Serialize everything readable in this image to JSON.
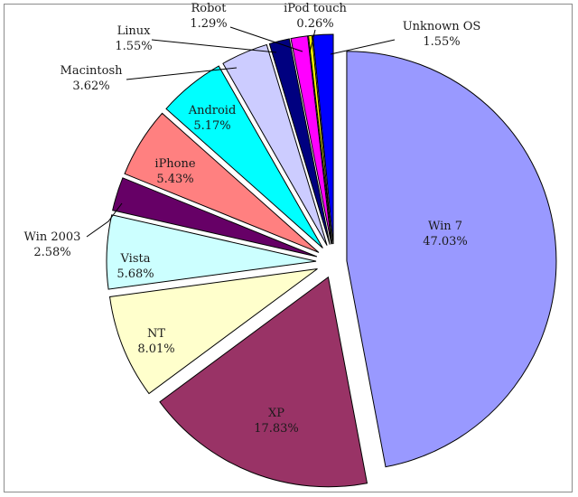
{
  "chart_data": {
    "type": "pie",
    "title": "",
    "label_format": "{name}\n{pct}%",
    "slices": [
      {
        "name": "Win 7",
        "value": 47.03,
        "color": "#9999ff"
      },
      {
        "name": "XP",
        "value": 17.83,
        "color": "#993366"
      },
      {
        "name": "NT",
        "value": 8.01,
        "color": "#ffffcc"
      },
      {
        "name": "Vista",
        "value": 5.68,
        "color": "#ccffff"
      },
      {
        "name": "Win 2003",
        "value": 2.58,
        "color": "#660066"
      },
      {
        "name": "iPhone",
        "value": 5.43,
        "color": "#ff8080"
      },
      {
        "name": "Android",
        "value": 5.17,
        "color": "#00ffff"
      },
      {
        "name": "Macintosh",
        "value": 3.62,
        "color": "#ccccff"
      },
      {
        "name": "Linux",
        "value": 1.55,
        "color": "#000080"
      },
      {
        "name": "Robot",
        "value": 1.29,
        "color": "#ff00ff"
      },
      {
        "name": "iPod touch",
        "value": 0.26,
        "color": "#ffff00"
      },
      {
        "name": "Unknown OS",
        "value": 1.55,
        "color": "#0000ff"
      }
    ]
  }
}
